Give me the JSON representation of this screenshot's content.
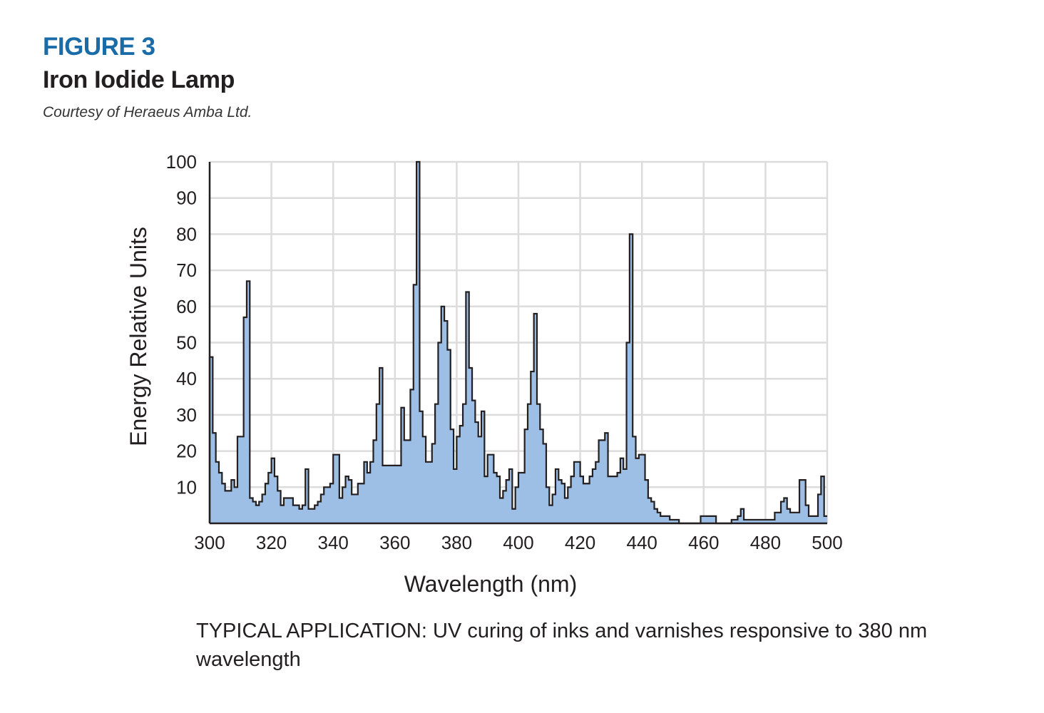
{
  "header": {
    "figure_label": "FIGURE 3",
    "title": "Iron Iodide Lamp",
    "credit": "Courtesy of Heraeus Amba Ltd."
  },
  "caption": "TYPICAL APPLICATION: UV curing of inks and varnishes responsive to 380 nm wavelength",
  "colors": {
    "accent": "#1a6ca8",
    "fill": "#9dbfe6",
    "stroke": "#231f20",
    "grid": "#dcdcdc"
  },
  "chart_data": {
    "type": "area",
    "title": "Iron Iodide Lamp",
    "xlabel": "Wavelength (nm)",
    "ylabel": "Energy Relative Units",
    "xlim": [
      300,
      500
    ],
    "ylim": [
      0,
      100
    ],
    "xticks": [
      300,
      320,
      340,
      360,
      380,
      400,
      420,
      440,
      460,
      480,
      500
    ],
    "xtick_labels": [
      "300",
      "320",
      "340",
      "360",
      "380",
      "400",
      "420",
      "440",
      "460",
      "480",
      "500"
    ],
    "yticks": [
      10,
      20,
      30,
      40,
      50,
      60,
      70,
      80,
      90,
      100
    ],
    "ytick_labels": [
      "10",
      "20",
      "30",
      "40",
      "50",
      "60",
      "70",
      "80",
      "90",
      "100"
    ],
    "grid": true,
    "step": true,
    "x": [
      300,
      301,
      302,
      303,
      304,
      305,
      306,
      307,
      308,
      309,
      310,
      311,
      312,
      313,
      314,
      315,
      316,
      317,
      318,
      319,
      320,
      321,
      322,
      323,
      324,
      325,
      326,
      327,
      328,
      329,
      330,
      331,
      332,
      333,
      334,
      335,
      336,
      337,
      338,
      339,
      340,
      341,
      342,
      343,
      344,
      345,
      346,
      347,
      348,
      349,
      350,
      351,
      352,
      353,
      354,
      355,
      356,
      357,
      358,
      359,
      360,
      361,
      362,
      363,
      364,
      365,
      366,
      367,
      368,
      369,
      370,
      371,
      372,
      373,
      374,
      375,
      376,
      377,
      378,
      379,
      380,
      381,
      382,
      383,
      384,
      385,
      386,
      387,
      388,
      389,
      390,
      391,
      392,
      393,
      394,
      395,
      396,
      397,
      398,
      399,
      400,
      401,
      402,
      403,
      404,
      405,
      406,
      407,
      408,
      409,
      410,
      411,
      412,
      413,
      414,
      415,
      416,
      417,
      418,
      419,
      420,
      421,
      422,
      423,
      424,
      425,
      426,
      427,
      428,
      429,
      430,
      431,
      432,
      433,
      434,
      435,
      436,
      437,
      438,
      439,
      440,
      441,
      442,
      443,
      444,
      445,
      446,
      447,
      448,
      449,
      450,
      451,
      452,
      453,
      454,
      455,
      456,
      457,
      458,
      459,
      460,
      461,
      462,
      463,
      464,
      465,
      466,
      467,
      468,
      469,
      470,
      471,
      472,
      473,
      474,
      475,
      476,
      477,
      478,
      479,
      480,
      481,
      482,
      483,
      484,
      485,
      486,
      487,
      488,
      489,
      490,
      491,
      492,
      493,
      494,
      495,
      496,
      497,
      498,
      499
    ],
    "values": [
      46,
      25,
      17,
      14,
      11,
      9,
      9,
      12,
      10,
      24,
      24,
      57,
      67,
      7,
      6,
      5,
      6,
      8,
      11,
      14,
      18,
      13,
      9,
      5,
      7,
      7,
      7,
      5,
      5,
      4,
      5,
      15,
      4,
      4,
      5,
      6,
      8,
      10,
      10,
      11,
      19,
      19,
      7,
      10,
      13,
      12,
      8,
      8,
      11,
      11,
      17,
      14,
      17,
      23,
      33,
      43,
      16,
      16,
      16,
      16,
      16,
      16,
      32,
      23,
      23,
      37,
      66,
      100,
      31,
      24,
      17,
      17,
      22,
      33,
      50,
      60,
      56,
      48,
      26,
      15,
      24,
      27,
      33,
      64,
      43,
      34,
      28,
      24,
      31,
      13,
      19,
      19,
      14,
      13,
      7,
      9,
      12,
      15,
      4,
      10,
      14,
      14,
      26,
      33,
      42,
      58,
      33,
      26,
      22,
      10,
      5,
      8,
      15,
      12,
      11,
      7,
      10,
      13,
      17,
      17,
      13,
      11,
      11,
      13,
      15,
      17,
      23,
      23,
      25,
      13,
      13,
      13,
      14,
      18,
      15,
      50,
      80,
      24,
      18,
      19,
      19,
      12,
      7,
      6,
      4,
      3,
      2,
      2,
      2,
      1,
      1,
      1,
      0,
      0,
      0,
      0,
      0,
      0,
      0,
      2,
      2,
      2,
      2,
      2,
      0,
      0,
      0,
      0,
      0,
      1,
      1,
      2,
      4,
      1,
      1,
      1,
      1,
      1,
      1,
      1,
      1,
      1,
      1,
      3,
      3,
      6,
      7,
      4,
      3,
      3,
      3,
      12,
      12,
      5,
      2,
      2,
      2,
      8,
      13,
      2
    ]
  }
}
